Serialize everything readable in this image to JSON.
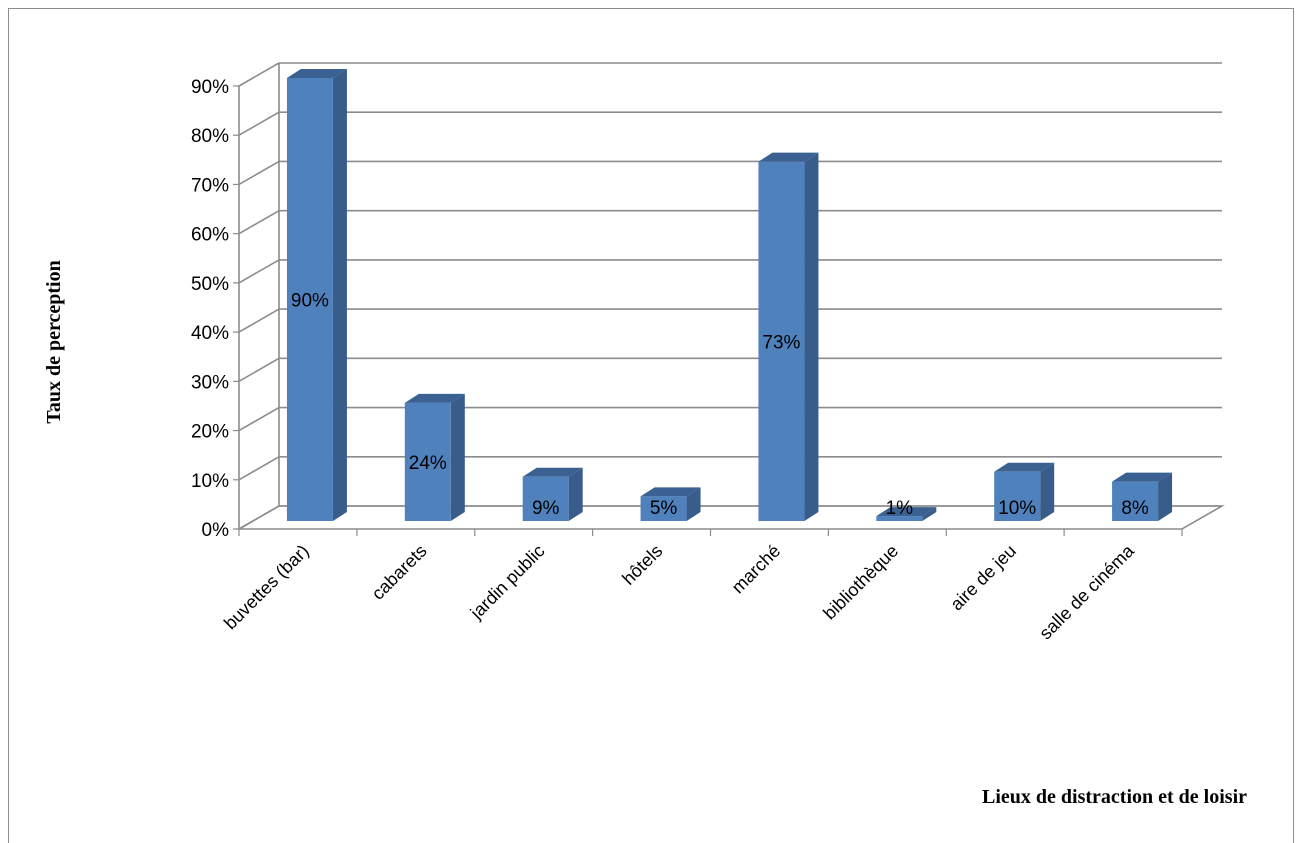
{
  "chart_data": {
    "type": "bar",
    "title": "",
    "xlabel": "Lieux de distraction et de loisir",
    "ylabel": "Taux de perception",
    "categories": [
      "buvettes (bar)",
      "cabarets",
      "jardin public",
      "hôtels",
      "marché",
      "bibliothèque",
      "aire de jeu",
      "salle de cinéma"
    ],
    "values": [
      90,
      24,
      9,
      5,
      73,
      1,
      10,
      8
    ],
    "data_labels": [
      "90%",
      "24%",
      "9%",
      "5%",
      "73%",
      "1%",
      "10%",
      "8%"
    ],
    "ylim": [
      0,
      90
    ],
    "yticks": [
      0,
      10,
      20,
      30,
      40,
      50,
      60,
      70,
      80,
      90
    ],
    "ytick_labels": [
      "0%",
      "10%",
      "20%",
      "30%",
      "40%",
      "50%",
      "60%",
      "70%",
      "80%",
      "90%"
    ],
    "grid": true,
    "style": "3d-column",
    "colors": {
      "bar_front": "#4f81bd",
      "bar_side": "#385d8a",
      "bar_top": "#3a6191",
      "grid": "#8c8c8c"
    }
  }
}
